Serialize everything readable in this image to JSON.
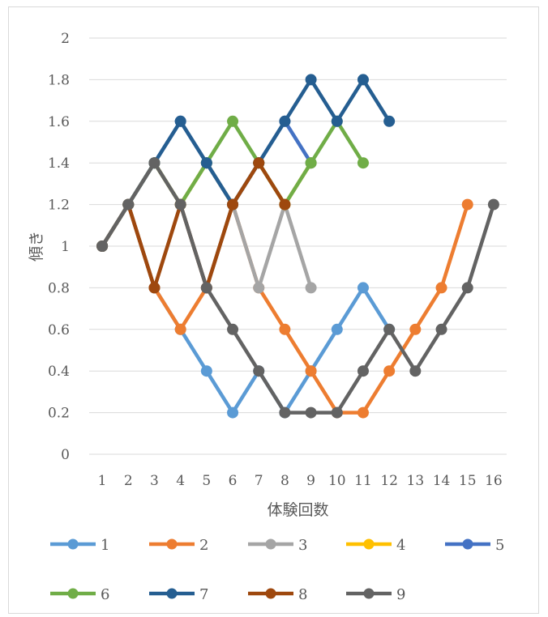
{
  "chart_data": {
    "type": "line",
    "title": "",
    "xlabel": "体験回数",
    "ylabel": "傾き",
    "x": [
      1,
      2,
      3,
      4,
      5,
      6,
      7,
      8,
      9,
      10,
      11,
      12,
      13,
      14,
      15,
      16
    ],
    "xticks": [
      "1",
      "2",
      "3",
      "4",
      "5",
      "6",
      "7",
      "8",
      "9",
      "10",
      "11",
      "12",
      "13",
      "14",
      "15",
      "16"
    ],
    "ylim": [
      0,
      2
    ],
    "yticks": [
      "0",
      "0.2",
      "0.4",
      "0.6",
      "0.8",
      "1",
      "1.2",
      "1.4",
      "1.6",
      "1.8",
      "2"
    ],
    "grid": true,
    "legend_position": "bottom",
    "series": [
      {
        "name": "1",
        "color": "#5B9BD5",
        "values": [
          1,
          1.2,
          0.8,
          0.6,
          0.4,
          0.2,
          0.4,
          0.2,
          0.4,
          0.6,
          0.8,
          0.6,
          null,
          null,
          null,
          null
        ]
      },
      {
        "name": "2",
        "color": "#ED7D31",
        "values": [
          1,
          1.2,
          0.8,
          0.6,
          0.8,
          1.2,
          0.8,
          0.6,
          0.4,
          0.2,
          0.2,
          0.4,
          0.6,
          0.8,
          1.2,
          null
        ]
      },
      {
        "name": "3",
        "color": "#A5A5A5",
        "values": [
          1,
          1.2,
          1.4,
          1.2,
          0.8,
          1.2,
          0.8,
          1.2,
          0.8,
          null,
          null,
          null,
          null,
          null,
          null,
          null
        ]
      },
      {
        "name": "4",
        "color": "#FFC000",
        "values": [
          1,
          1.2,
          1.4,
          1.2,
          1.4,
          1.2,
          1.4,
          1.2,
          1.4,
          null,
          null,
          null,
          null,
          null,
          null,
          null
        ]
      },
      {
        "name": "5",
        "color": "#4472C4",
        "values": [
          1,
          1.2,
          1.4,
          1.6,
          1.4,
          1.2,
          1.4,
          1.6,
          1.4,
          null,
          null,
          null,
          null,
          null,
          null,
          null
        ]
      },
      {
        "name": "6",
        "color": "#70AD47",
        "values": [
          1,
          1.2,
          1.4,
          1.2,
          1.4,
          1.6,
          1.4,
          1.2,
          1.4,
          1.6,
          1.4,
          null,
          null,
          null,
          null,
          null
        ]
      },
      {
        "name": "7",
        "color": "#255E91",
        "values": [
          1,
          1.2,
          1.4,
          1.6,
          1.4,
          1.2,
          1.4,
          1.6,
          1.8,
          1.6,
          1.8,
          1.6,
          null,
          null,
          null,
          null
        ]
      },
      {
        "name": "8",
        "color": "#9E480E",
        "values": [
          1,
          1.2,
          0.8,
          1.2,
          0.8,
          1.2,
          1.4,
          1.2,
          null,
          null,
          null,
          null,
          null,
          null,
          null,
          null
        ]
      },
      {
        "name": "9",
        "color": "#636363",
        "values": [
          1,
          1.2,
          1.4,
          1.2,
          0.8,
          0.6,
          0.4,
          0.2,
          0.2,
          0.2,
          0.4,
          0.6,
          0.4,
          0.6,
          0.8,
          1.2
        ]
      }
    ]
  }
}
